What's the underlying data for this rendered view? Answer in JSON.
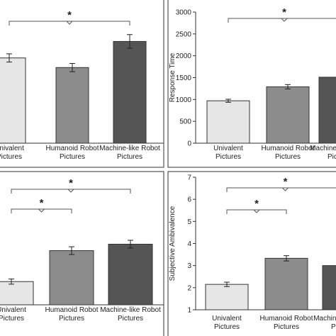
{
  "chart_data": [
    {
      "type": "bar",
      "panel": "top-left",
      "categories": [
        [
          "Univalent",
          "Pictures"
        ],
        [
          "Humanoid Robot",
          "Pictures"
        ],
        [
          "Machine-like Robot",
          "Pictures"
        ]
      ],
      "values": [
        0.62,
        0.55,
        0.74
      ],
      "errors": [
        0.03,
        0.03,
        0.05
      ],
      "ylim": [
        0,
        1
      ],
      "ylabel": "",
      "yticks": [],
      "colors": [
        "#e6e6e6",
        "#8c8c8c",
        "#555555"
      ],
      "brackets": [
        {
          "from": 0,
          "to": 2,
          "label": "*"
        }
      ]
    },
    {
      "type": "bar",
      "panel": "top-right",
      "categories": [
        [
          "Univalent",
          "Pictures"
        ],
        [
          "Humanoid Robot",
          "Pictures"
        ],
        [
          "Machine-like Robot",
          "Pictures"
        ]
      ],
      "values": [
        970,
        1290,
        1510
      ],
      "errors": [
        35,
        50,
        60
      ],
      "ylim": [
        0,
        3000
      ],
      "ylabel": "Response Time",
      "yticks": [
        "0",
        "500",
        "1000",
        "1500",
        "2000",
        "2500",
        "3000"
      ],
      "colors": [
        "#e6e6e6",
        "#8c8c8c",
        "#555555"
      ],
      "brackets": [
        {
          "from": 0,
          "to": 1,
          "label": "*"
        },
        {
          "from": 0,
          "to": 2,
          "label": "*"
        }
      ]
    },
    {
      "type": "bar",
      "panel": "bottom-left",
      "categories": [
        [
          "Univalent",
          "Pictures"
        ],
        [
          "Humanoid Robot",
          "Pictures"
        ],
        [
          "Machine-like Robot",
          "Pictures"
        ]
      ],
      "values": [
        0.18,
        0.42,
        0.47
      ],
      "errors": [
        0.02,
        0.03,
        0.03
      ],
      "ylim": [
        0,
        1
      ],
      "ylabel": "",
      "yticks": [],
      "colors": [
        "#e6e6e6",
        "#8c8c8c",
        "#555555"
      ],
      "brackets": [
        {
          "from": 0,
          "to": 1,
          "label": "*"
        },
        {
          "from": 0,
          "to": 2,
          "label": "*"
        }
      ]
    },
    {
      "type": "bar",
      "panel": "bottom-right",
      "categories": [
        [
          "Univalent",
          "Pictures"
        ],
        [
          "Humanoid Robot",
          "Pictures"
        ],
        [
          "Machine-like Robot",
          "Pictures"
        ]
      ],
      "values": [
        2.15,
        3.33,
        3.0
      ],
      "errors": [
        0.1,
        0.12,
        0.1
      ],
      "ylim": [
        1,
        7
      ],
      "ylabel": "Subjective Ambivalence",
      "yticks": [
        "1",
        "2",
        "3",
        "4",
        "5",
        "6",
        "7"
      ],
      "colors": [
        "#e6e6e6",
        "#8c8c8c",
        "#555555"
      ],
      "brackets": [
        {
          "from": 0,
          "to": 1,
          "label": "*"
        },
        {
          "from": 0,
          "to": 2,
          "label": "*"
        }
      ]
    }
  ]
}
